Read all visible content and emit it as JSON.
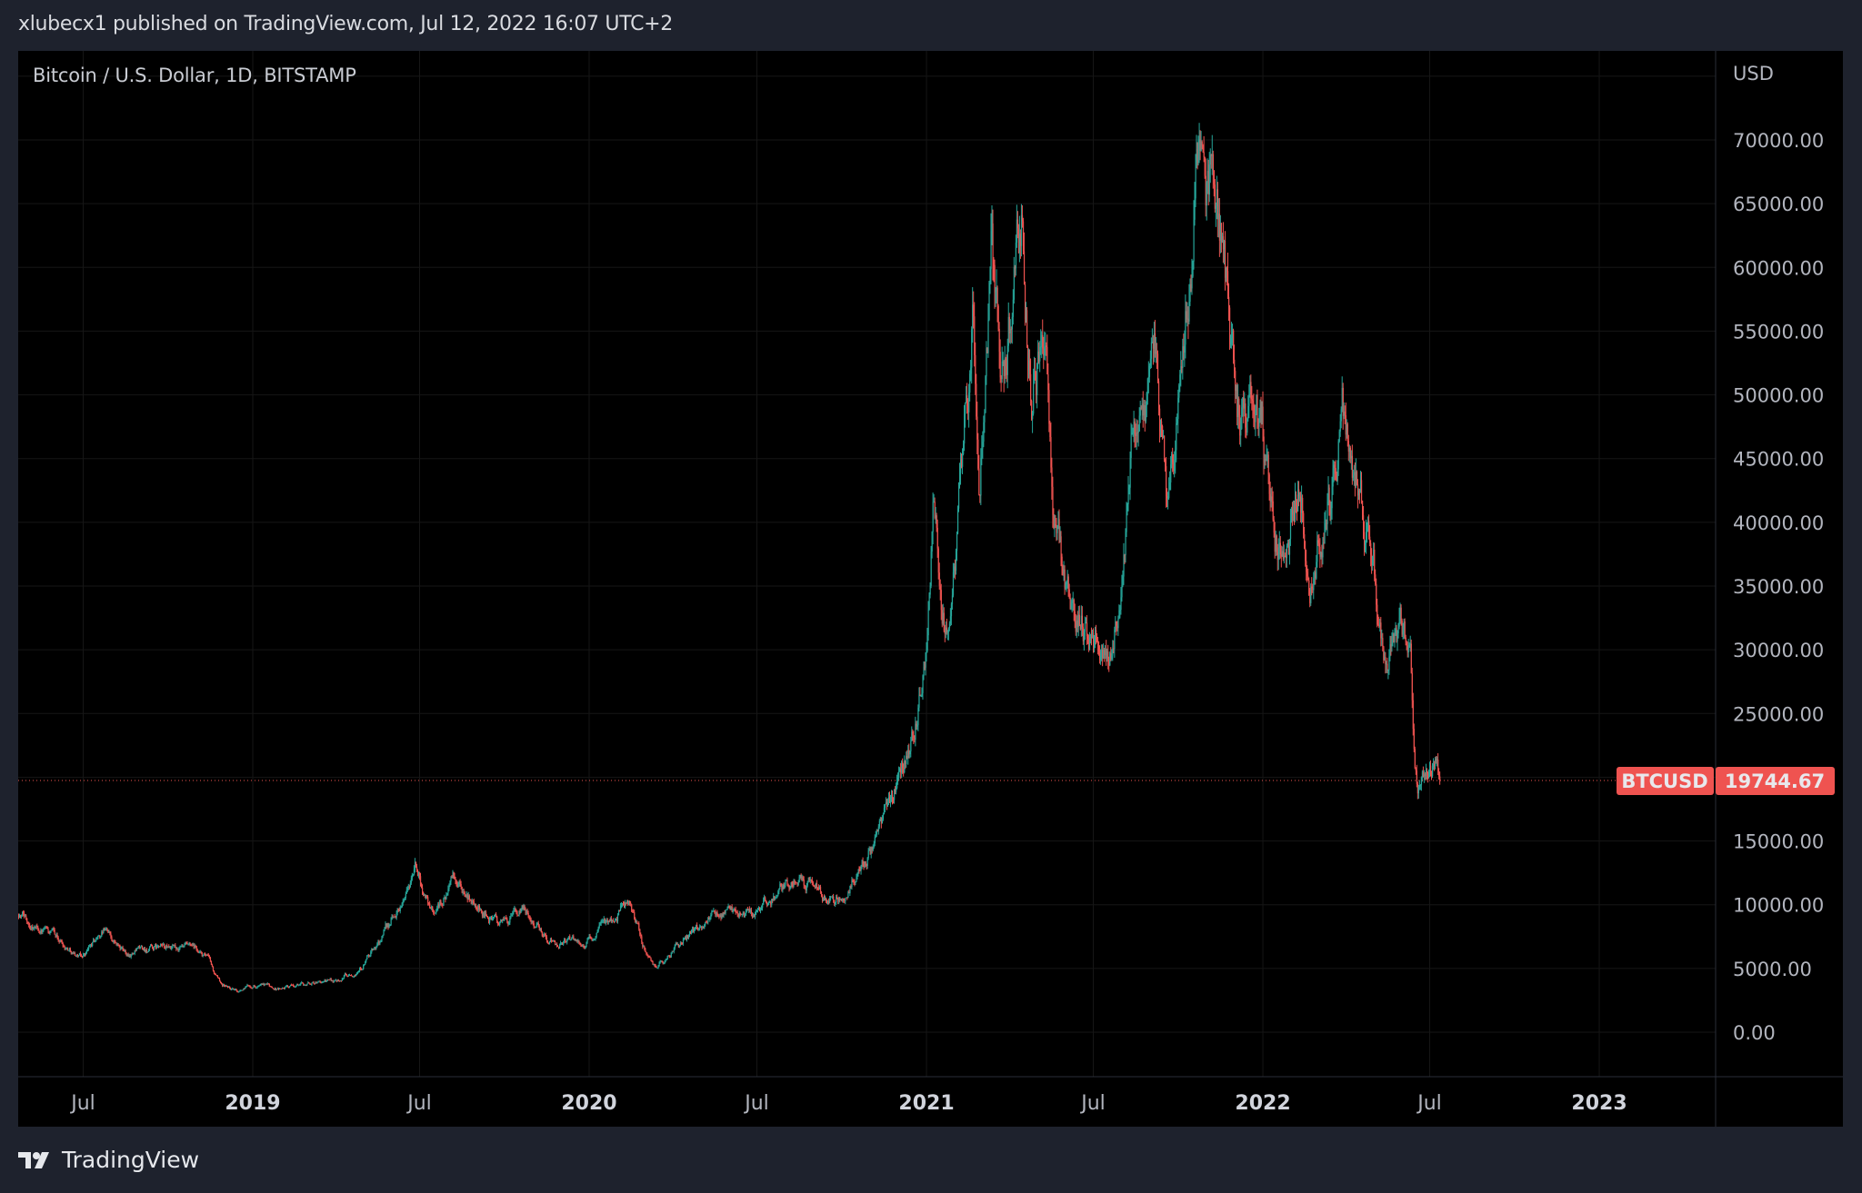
{
  "header": {
    "published": "xlubecx1 published on TradingView.com, Jul 12, 2022 16:07 UTC+2"
  },
  "footer": {
    "brand": "TradingView",
    "logo_icon": "tradingview-logo-icon"
  },
  "colors": {
    "up": "#26a69a",
    "down": "#ef5350",
    "background": "#000000",
    "frame": "#1e222d",
    "label": "#ef5350"
  },
  "chart_data": {
    "type": "candlestick",
    "title": "Bitcoin / U.S. Dollar, 1D, BITSTAMP",
    "currency": "USD",
    "start_date": "2018-04-22",
    "end_date": "2022-07-12",
    "ylim": [
      -3500,
      80000
    ],
    "y_ticks": [
      "0.00",
      "5000.00",
      "10000.00",
      "15000.00",
      "25000.00",
      "30000.00",
      "35000.00",
      "40000.00",
      "45000.00",
      "50000.00",
      "55000.00",
      "60000.00",
      "65000.00",
      "70000.00"
    ],
    "y_tick_values": [
      0,
      5000,
      10000,
      15000,
      25000,
      30000,
      35000,
      40000,
      45000,
      50000,
      55000,
      60000,
      65000,
      70000
    ],
    "x_ticks": [
      {
        "label": "Jul",
        "date": "2018-07-01",
        "bold": false
      },
      {
        "label": "2019",
        "date": "2019-01-01",
        "bold": true
      },
      {
        "label": "Jul",
        "date": "2019-07-01",
        "bold": false
      },
      {
        "label": "2020",
        "date": "2020-01-01",
        "bold": true
      },
      {
        "label": "Jul",
        "date": "2020-07-01",
        "bold": false
      },
      {
        "label": "2021",
        "date": "2021-01-01",
        "bold": true
      },
      {
        "label": "Jul",
        "date": "2021-07-01",
        "bold": false
      },
      {
        "label": "2022",
        "date": "2022-01-01",
        "bold": true
      },
      {
        "label": "Jul",
        "date": "2022-07-01",
        "bold": false
      },
      {
        "label": "2023",
        "date": "2023-01-01",
        "bold": true
      }
    ],
    "last_price": {
      "symbol": "BTCUSD",
      "value": 19744.67,
      "label": "19744.67"
    },
    "approx_closes": [
      [
        "2018-04-22",
        9300
      ],
      [
        "2018-05-31",
        7500
      ],
      [
        "2018-06-29",
        5900
      ],
      [
        "2018-07-25",
        8300
      ],
      [
        "2018-08-14",
        6200
      ],
      [
        "2018-09-30",
        6630
      ],
      [
        "2018-10-31",
        6320
      ],
      [
        "2018-11-14",
        5600
      ],
      [
        "2018-11-25",
        3900
      ],
      [
        "2018-12-15",
        3250
      ],
      [
        "2018-12-31",
        3740
      ],
      [
        "2019-01-31",
        3450
      ],
      [
        "2019-02-28",
        3830
      ],
      [
        "2019-03-31",
        4100
      ],
      [
        "2019-04-30",
        5330
      ],
      [
        "2019-05-31",
        8560
      ],
      [
        "2019-06-26",
        13000
      ],
      [
        "2019-07-16",
        9500
      ],
      [
        "2019-08-06",
        11800
      ],
      [
        "2019-09-24",
        8500
      ],
      [
        "2019-10-26",
        9500
      ],
      [
        "2019-11-25",
        7000
      ],
      [
        "2019-12-31",
        7200
      ],
      [
        "2020-02-13",
        10300
      ],
      [
        "2020-03-12",
        5000
      ],
      [
        "2020-03-31",
        6420
      ],
      [
        "2020-04-30",
        8630
      ],
      [
        "2020-05-31",
        9460
      ],
      [
        "2020-06-30",
        9140
      ],
      [
        "2020-07-31",
        11350
      ],
      [
        "2020-08-17",
        12300
      ],
      [
        "2020-09-23",
        10300
      ],
      [
        "2020-10-31",
        13800
      ],
      [
        "2020-11-30",
        19700
      ],
      [
        "2020-12-31",
        29000
      ],
      [
        "2021-01-08",
        40500
      ],
      [
        "2021-01-22",
        31500
      ],
      [
        "2021-02-21",
        57000
      ],
      [
        "2021-02-28",
        45200
      ],
      [
        "2021-03-13",
        61000
      ],
      [
        "2021-03-25",
        52000
      ],
      [
        "2021-04-14",
        63500
      ],
      [
        "2021-04-25",
        49000
      ],
      [
        "2021-05-10",
        58000
      ],
      [
        "2021-05-19",
        38000
      ],
      [
        "2021-06-22",
        32000
      ],
      [
        "2021-07-20",
        29800
      ],
      [
        "2021-08-14",
        47500
      ],
      [
        "2021-09-07",
        51500
      ],
      [
        "2021-09-21",
        40800
      ],
      [
        "2021-10-20",
        65000
      ],
      [
        "2021-11-10",
        66500
      ],
      [
        "2021-12-04",
        49000
      ],
      [
        "2021-12-31",
        46300
      ],
      [
        "2022-01-24",
        35500
      ],
      [
        "2022-02-10",
        44000
      ],
      [
        "2022-02-24",
        36000
      ],
      [
        "2022-03-28",
        47500
      ],
      [
        "2022-04-30",
        37700
      ],
      [
        "2022-05-12",
        29000
      ],
      [
        "2022-05-31",
        31800
      ],
      [
        "2022-06-10",
        29000
      ],
      [
        "2022-06-18",
        18500
      ],
      [
        "2022-07-08",
        21800
      ],
      [
        "2022-07-12",
        19744.67
      ]
    ]
  }
}
